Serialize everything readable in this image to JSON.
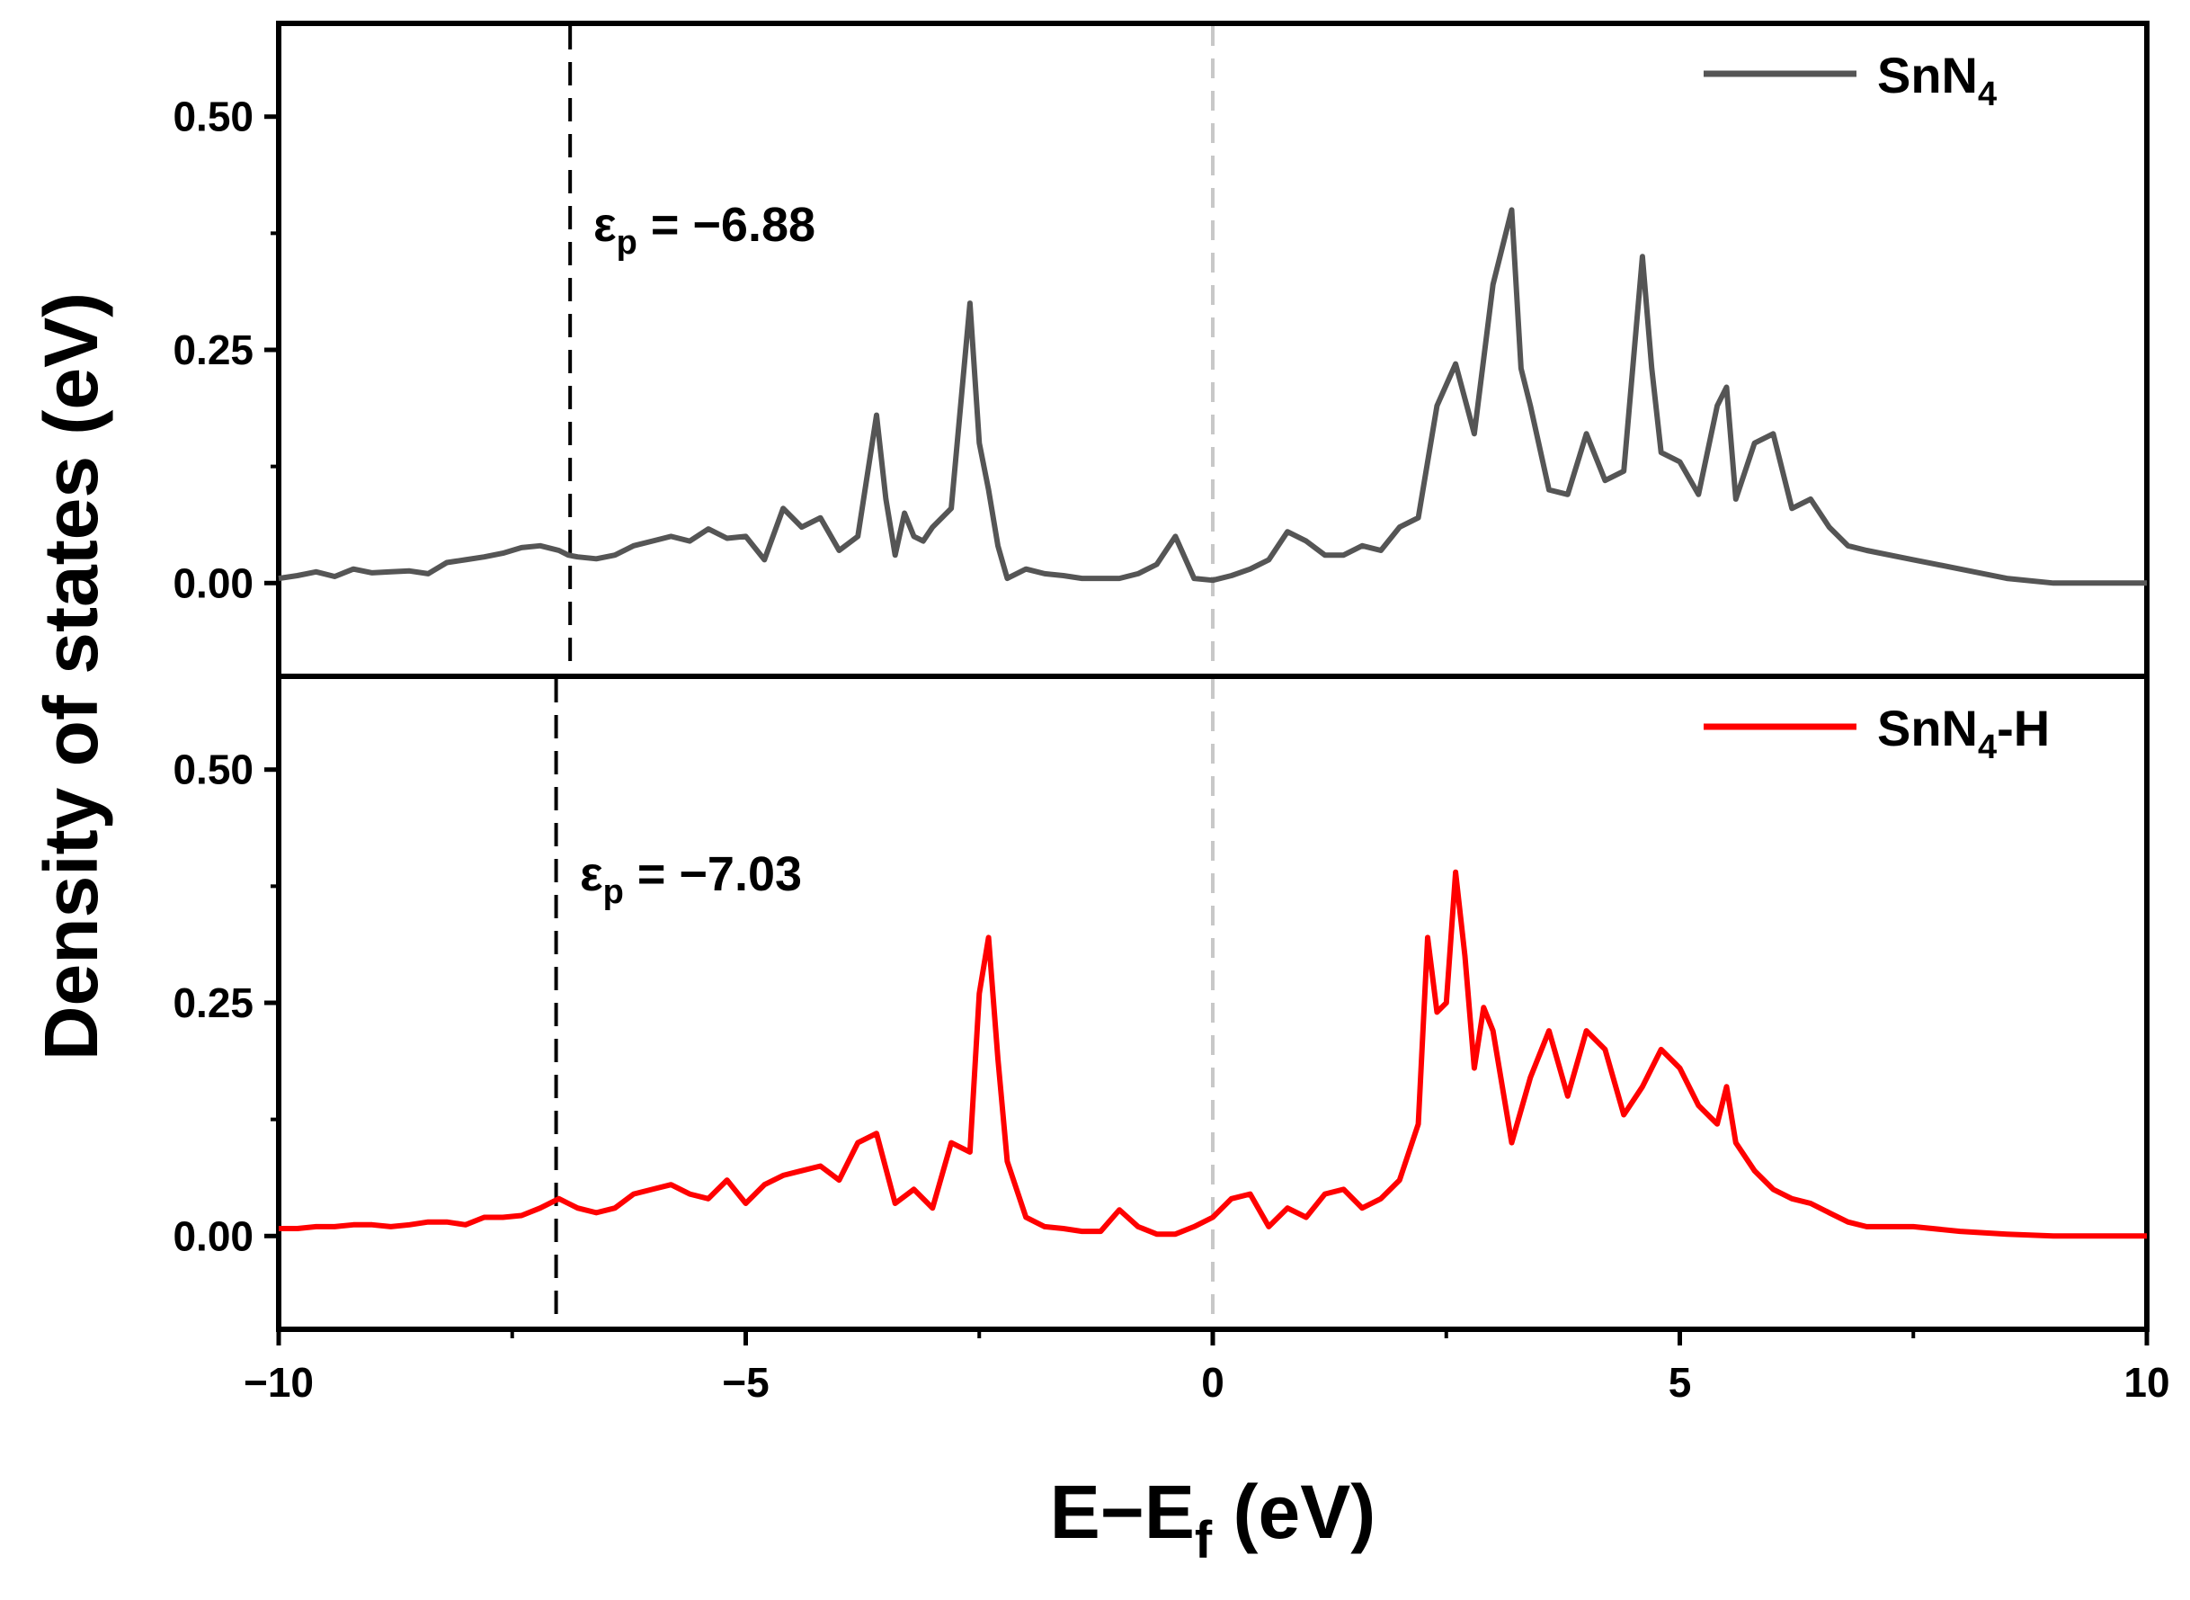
{
  "chart_data": [
    {
      "type": "line",
      "panel": "top",
      "xlim": [
        -10,
        10
      ],
      "ylim": [
        -0.1,
        0.6
      ],
      "y_ticks": [
        "0.00",
        "0.25",
        "0.50"
      ],
      "series": [
        {
          "name": "SnN",
          "name_subscript": "4",
          "name_suffix": "",
          "color": "#555555",
          "x": [
            -10,
            -9.8,
            -9.6,
            -9.4,
            -9.2,
            -9,
            -8.8,
            -8.6,
            -8.4,
            -8.2,
            -8,
            -7.8,
            -7.6,
            -7.4,
            -7.2,
            -7,
            -6.9,
            -6.8,
            -6.6,
            -6.4,
            -6.2,
            -6,
            -5.8,
            -5.6,
            -5.4,
            -5.2,
            -5,
            -4.8,
            -4.6,
            -4.4,
            -4.2,
            -4,
            -3.8,
            -3.6,
            -3.5,
            -3.4,
            -3.3,
            -3.2,
            -3.1,
            -3,
            -2.8,
            -2.6,
            -2.5,
            -2.4,
            -2.3,
            -2.2,
            -2,
            -1.8,
            -1.6,
            -1.4,
            -1.2,
            -1,
            -0.8,
            -0.6,
            -0.4,
            -0.2,
            0,
            0.2,
            0.4,
            0.6,
            0.8,
            1,
            1.2,
            1.4,
            1.6,
            1.8,
            2,
            2.2,
            2.4,
            2.6,
            2.8,
            3,
            3.2,
            3.3,
            3.4,
            3.6,
            3.8,
            4,
            4.2,
            4.4,
            4.6,
            4.7,
            4.8,
            5,
            5.2,
            5.4,
            5.5,
            5.6,
            5.8,
            6,
            6.2,
            6.4,
            6.6,
            6.8,
            7,
            7.5,
            8,
            8.5,
            9,
            9.5,
            10
          ],
          "y": [
            0.005,
            0.008,
            0.012,
            0.007,
            0.015,
            0.011,
            0.012,
            0.013,
            0.01,
            0.022,
            0.025,
            0.028,
            0.032,
            0.038,
            0.04,
            0.035,
            0.03,
            0.028,
            0.026,
            0.03,
            0.04,
            0.045,
            0.05,
            0.045,
            0.058,
            0.048,
            0.05,
            0.025,
            0.08,
            0.06,
            0.07,
            0.035,
            0.05,
            0.18,
            0.09,
            0.03,
            0.075,
            0.05,
            0.045,
            0.06,
            0.08,
            0.3,
            0.15,
            0.1,
            0.04,
            0.005,
            0.015,
            0.01,
            0.008,
            0.005,
            0.005,
            0.005,
            0.01,
            0.02,
            0.05,
            0.005,
            0.003,
            0.008,
            0.015,
            0.025,
            0.055,
            0.045,
            0.03,
            0.03,
            0.04,
            0.035,
            0.06,
            0.07,
            0.19,
            0.235,
            0.16,
            0.32,
            0.4,
            0.23,
            0.19,
            0.1,
            0.095,
            0.16,
            0.11,
            0.12,
            0.35,
            0.23,
            0.14,
            0.13,
            0.095,
            0.19,
            0.21,
            0.09,
            0.15,
            0.16,
            0.08,
            0.09,
            0.06,
            0.04,
            0.035,
            0.025,
            0.015,
            0.005,
            0,
            0,
            0
          ]
        }
      ],
      "annotation": {
        "epsilon": "ε",
        "subscript": "p",
        "text": " = −6.88",
        "vline_x": -6.88
      },
      "fermi_line_x": 0
    },
    {
      "type": "line",
      "panel": "bottom",
      "xlim": [
        -10,
        10
      ],
      "ylim": [
        -0.1,
        0.6
      ],
      "y_ticks": [
        "0.00",
        "0.25",
        "0.50"
      ],
      "series": [
        {
          "name": "SnN",
          "name_subscript": "4",
          "name_suffix": "-H",
          "color": "#ff0000",
          "x": [
            -10,
            -9.8,
            -9.6,
            -9.4,
            -9.2,
            -9,
            -8.8,
            -8.6,
            -8.4,
            -8.2,
            -8,
            -7.8,
            -7.6,
            -7.4,
            -7.2,
            -7,
            -6.9,
            -6.8,
            -6.6,
            -6.4,
            -6.2,
            -6,
            -5.8,
            -5.6,
            -5.4,
            -5.2,
            -5,
            -4.8,
            -4.6,
            -4.4,
            -4.2,
            -4,
            -3.8,
            -3.6,
            -3.4,
            -3.2,
            -3,
            -2.8,
            -2.6,
            -2.5,
            -2.4,
            -2.3,
            -2.2,
            -2,
            -1.8,
            -1.6,
            -1.4,
            -1.2,
            -1,
            -0.8,
            -0.6,
            -0.4,
            -0.2,
            0,
            0.2,
            0.4,
            0.6,
            0.8,
            1,
            1.2,
            1.4,
            1.6,
            1.8,
            2,
            2.2,
            2.3,
            2.4,
            2.5,
            2.6,
            2.7,
            2.8,
            2.9,
            3,
            3.2,
            3.4,
            3.6,
            3.8,
            4,
            4.2,
            4.4,
            4.6,
            4.8,
            5,
            5.2,
            5.4,
            5.5,
            5.6,
            5.8,
            6,
            6.2,
            6.4,
            6.6,
            6.8,
            7,
            7.5,
            8,
            8.5,
            9,
            9.5,
            10
          ],
          "y": [
            0.008,
            0.008,
            0.01,
            0.01,
            0.012,
            0.012,
            0.01,
            0.012,
            0.015,
            0.015,
            0.012,
            0.02,
            0.02,
            0.022,
            0.03,
            0.04,
            0.035,
            0.03,
            0.025,
            0.03,
            0.045,
            0.05,
            0.055,
            0.045,
            0.04,
            0.06,
            0.035,
            0.055,
            0.065,
            0.07,
            0.075,
            0.06,
            0.1,
            0.11,
            0.035,
            0.05,
            0.03,
            0.1,
            0.09,
            0.26,
            0.32,
            0.19,
            0.08,
            0.02,
            0.01,
            0.008,
            0.005,
            0.005,
            0.028,
            0.01,
            0.002,
            0.002,
            0.01,
            0.02,
            0.04,
            0.045,
            0.01,
            0.03,
            0.02,
            0.045,
            0.05,
            0.03,
            0.04,
            0.06,
            0.12,
            0.32,
            0.24,
            0.25,
            0.39,
            0.3,
            0.18,
            0.245,
            0.22,
            0.1,
            0.17,
            0.22,
            0.15,
            0.22,
            0.2,
            0.13,
            0.16,
            0.2,
            0.18,
            0.14,
            0.12,
            0.16,
            0.1,
            0.07,
            0.05,
            0.04,
            0.035,
            0.025,
            0.015,
            0.01,
            0.01,
            0.005,
            0.002,
            0,
            0,
            0
          ]
        }
      ],
      "annotation": {
        "epsilon": "ε",
        "subscript": "p",
        "text": " = −7.03",
        "vline_x": -7.03
      },
      "fermi_line_x": 0
    }
  ],
  "axes": {
    "x_ticks": [
      "−10",
      "−5",
      "0",
      "5",
      "10"
    ],
    "x_tick_values": [
      -10,
      -5,
      0,
      5,
      10
    ],
    "xlabel_main": "E−E",
    "xlabel_sub": "f",
    "xlabel_tail": " (eV)",
    "ylabel": "Density of states (eV)"
  },
  "colors": {
    "axes": "#000000",
    "fermi_line": "#c8c8c8",
    "epsilon_line": "#000000"
  }
}
